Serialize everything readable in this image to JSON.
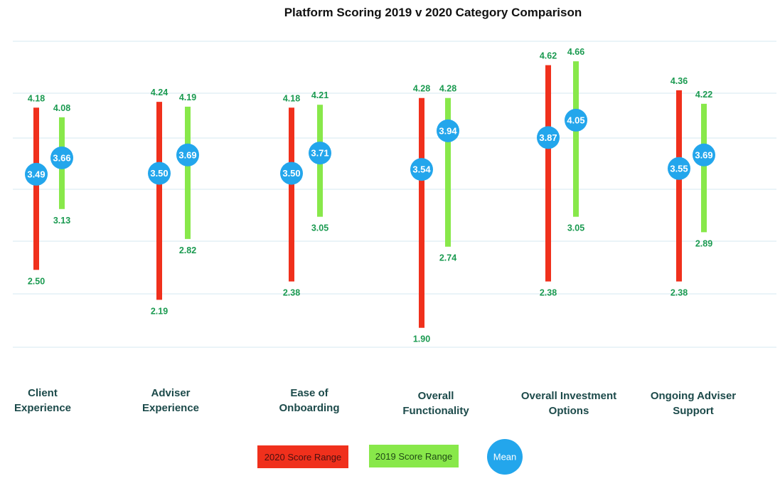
{
  "chart_data": {
    "type": "range",
    "title": "Platform Scoring 2019 v 2020 Category Comparison",
    "ylim": [
      1.5,
      5.0
    ],
    "grid": true,
    "colors": {
      "range_2020": "#f0301c",
      "range_2019": "#88e84a",
      "mean": "#23a6ec",
      "value_label": "#1a9a50",
      "category_label": "#1c4a4a",
      "grid": "#d4e8f2"
    },
    "legend": {
      "position": "bottom-center",
      "items": [
        {
          "label": "2020 Score Range",
          "kind": "range_2020"
        },
        {
          "label": "2019 Score Range",
          "kind": "range_2019"
        },
        {
          "label": "Mean",
          "kind": "mean"
        }
      ]
    },
    "categories": [
      {
        "line1": "Client",
        "line2": "Experience",
        "r2020": {
          "max": 4.18,
          "min": 2.5,
          "mean": 3.49,
          "max_label": "4.18",
          "min_label": "2.50",
          "mean_label": "3.49"
        },
        "r2019": {
          "max": 4.08,
          "min": 3.13,
          "mean": 3.66,
          "max_label": "4.08",
          "min_label": "3.13",
          "mean_label": "3.66"
        }
      },
      {
        "line1": "Adviser",
        "line2": "Experience",
        "r2020": {
          "max": 4.24,
          "min": 2.19,
          "mean": 3.5,
          "max_label": "4.24",
          "min_label": "2.19",
          "mean_label": "3.50"
        },
        "r2019": {
          "max": 4.19,
          "min": 2.82,
          "mean": 3.69,
          "max_label": "4.19",
          "min_label": "2.82",
          "mean_label": "3.69"
        }
      },
      {
        "line1": "Ease of",
        "line2": "Onboarding",
        "r2020": {
          "max": 4.18,
          "min": 2.38,
          "mean": 3.5,
          "max_label": "4.18",
          "min_label": "2.38",
          "mean_label": "3.50"
        },
        "r2019": {
          "max": 4.21,
          "min": 3.05,
          "mean": 3.71,
          "max_label": "4.21",
          "min_label": "3.05",
          "mean_label": "3.71"
        }
      },
      {
        "line1": "Overall",
        "line2": "Functionality",
        "r2020": {
          "max": 4.28,
          "min": 1.9,
          "mean": 3.54,
          "max_label": "4.28",
          "min_label": "1.90",
          "mean_label": "3.54"
        },
        "r2019": {
          "max": 4.28,
          "min": 2.74,
          "mean": 3.94,
          "max_label": "4.28",
          "min_label": "2.74",
          "mean_label": "3.94"
        }
      },
      {
        "line1": "Overall Investment",
        "line2": "Options",
        "r2020": {
          "max": 4.62,
          "min": 2.38,
          "mean": 3.87,
          "max_label": "4.62",
          "min_label": "2.38",
          "mean_label": "3.87"
        },
        "r2019": {
          "max": 4.66,
          "min": 3.05,
          "mean": 4.05,
          "max_label": "4.66",
          "min_label": "3.05",
          "mean_label": "4.05"
        }
      },
      {
        "line1": "Ongoing Adviser",
        "line2": "Support",
        "r2020": {
          "max": 4.36,
          "min": 2.38,
          "mean": 3.55,
          "max_label": "4.36",
          "min_label": "2.38",
          "mean_label": "3.55"
        },
        "r2019": {
          "max": 4.22,
          "min": 2.89,
          "mean": 3.69,
          "max_label": "4.22",
          "min_label": "2.89",
          "mean_label": "3.69"
        }
      }
    ]
  }
}
